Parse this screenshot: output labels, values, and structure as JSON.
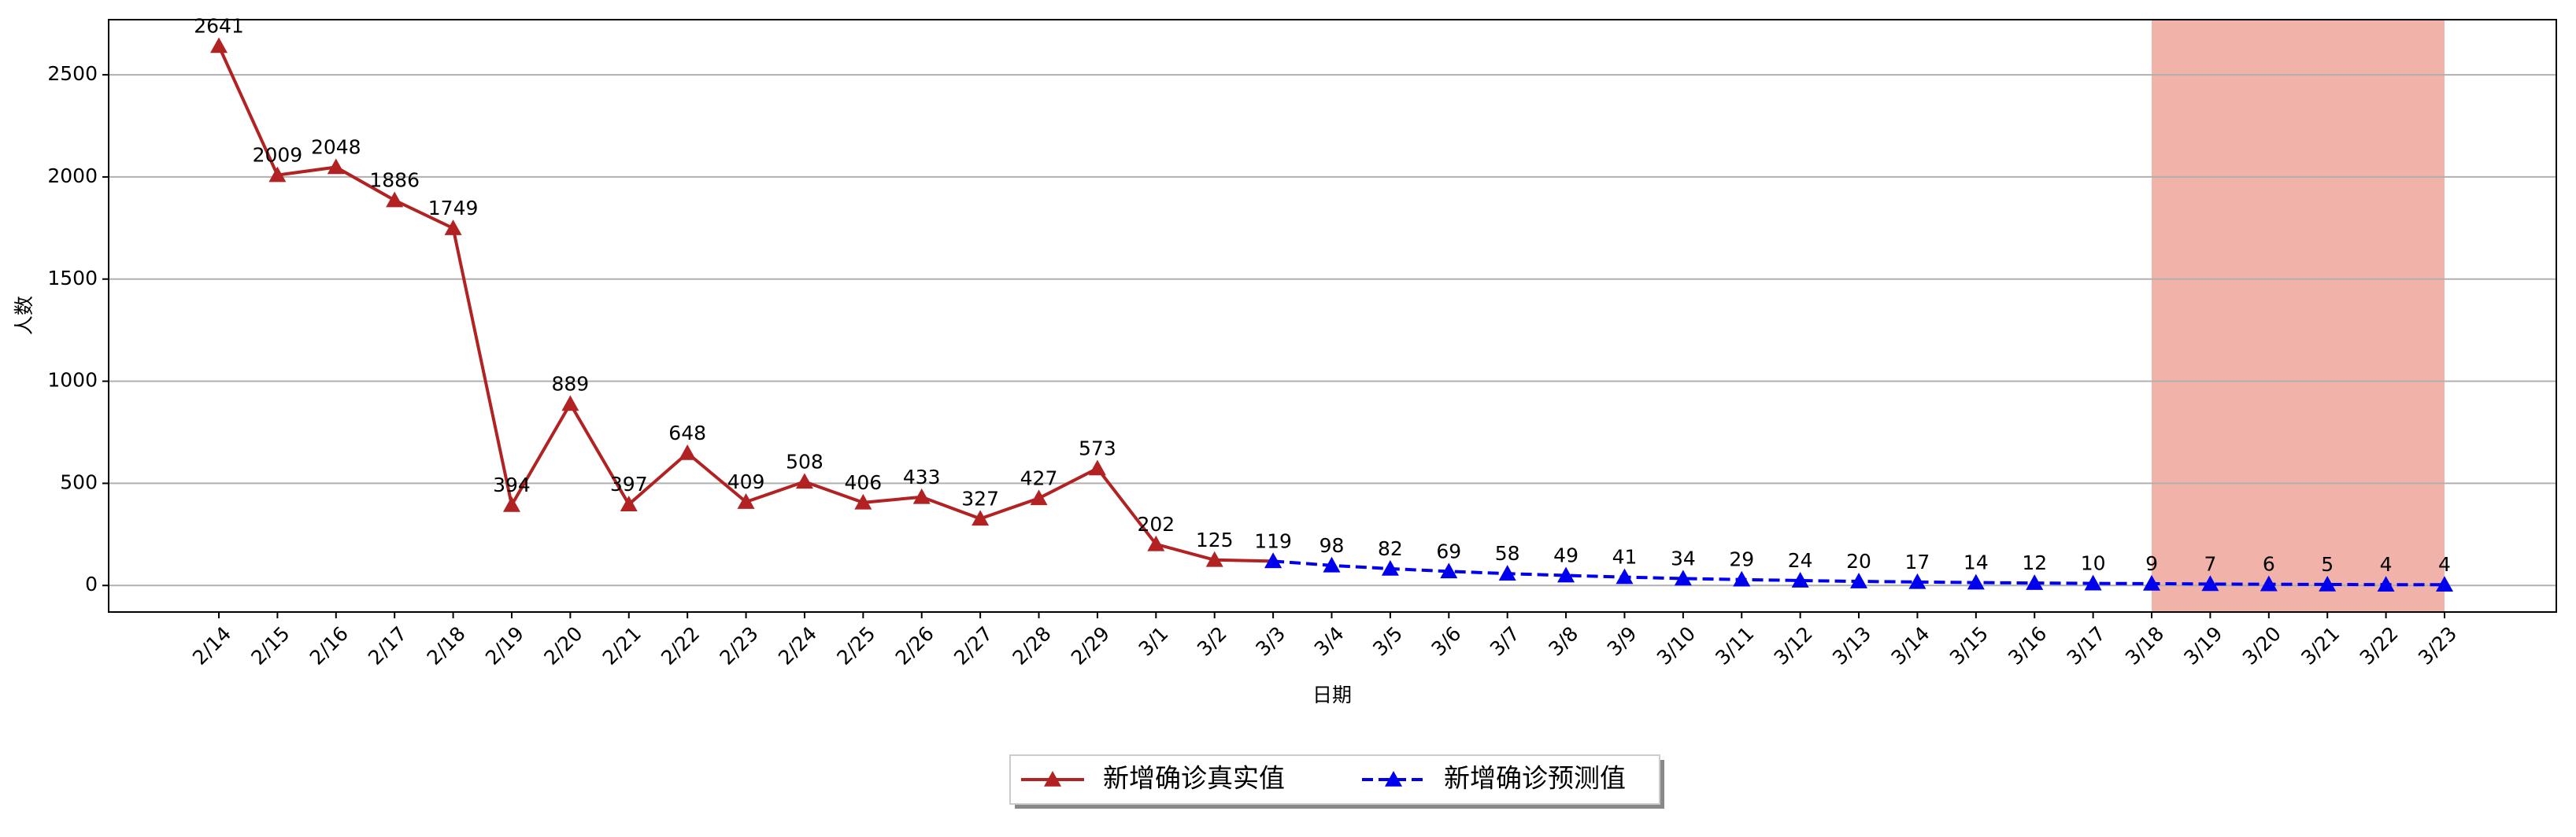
{
  "chart_data": {
    "type": "line",
    "xlabel": "日期",
    "ylabel": "人数",
    "categories": [
      "2/14",
      "2/15",
      "2/16",
      "2/17",
      "2/18",
      "2/19",
      "2/20",
      "2/21",
      "2/22",
      "2/23",
      "2/24",
      "2/25",
      "2/26",
      "2/27",
      "2/28",
      "2/29",
      "3/1",
      "3/2",
      "3/3",
      "3/4",
      "3/5",
      "3/6",
      "3/7",
      "3/8",
      "3/9",
      "3/10",
      "3/11",
      "3/12",
      "3/13",
      "3/14",
      "3/15",
      "3/16",
      "3/17",
      "3/18",
      "3/19",
      "3/20",
      "3/21",
      "3/22",
      "3/23"
    ],
    "series": [
      {
        "name": "新增确诊真实值",
        "color": "#b22222",
        "dashed": false,
        "values": [
          2641,
          2009,
          2048,
          1886,
          1749,
          394,
          889,
          397,
          648,
          409,
          508,
          406,
          433,
          327,
          427,
          573,
          202,
          125,
          119,
          null,
          null,
          null,
          null,
          null,
          null,
          null,
          null,
          null,
          null,
          null,
          null,
          null,
          null,
          null,
          null,
          null,
          null,
          null,
          null
        ]
      },
      {
        "name": "新增确诊预测值",
        "color": "#0000ee",
        "dashed": true,
        "values": [
          null,
          null,
          null,
          null,
          null,
          null,
          null,
          null,
          null,
          null,
          null,
          null,
          null,
          null,
          null,
          null,
          null,
          null,
          119,
          98,
          82,
          69,
          58,
          49,
          41,
          34,
          29,
          24,
          20,
          17,
          14,
          12,
          10,
          9,
          7,
          6,
          5,
          4,
          4
        ]
      }
    ],
    "highlight": {
      "from": "3/18",
      "to": "3/23",
      "color": "#e8806f"
    },
    "ylim": [
      -130,
      2770
    ],
    "yticks": [
      0,
      500,
      1000,
      1500,
      2000,
      2500
    ],
    "grid": true,
    "legend": "bottom"
  }
}
